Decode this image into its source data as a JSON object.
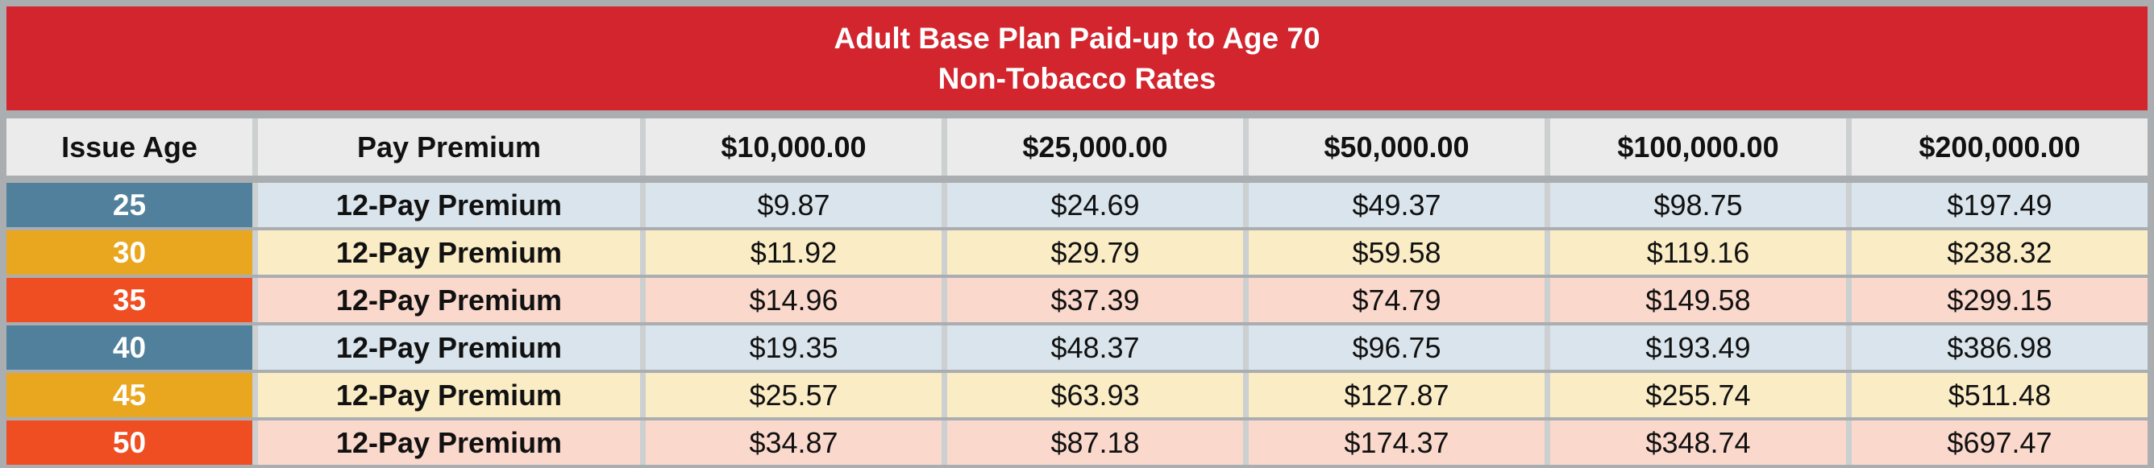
{
  "title": {
    "line1": "Adult Base Plan Paid-up to Age 70",
    "line2": "Non-Tobacco Rates"
  },
  "table": {
    "columns": [
      "Issue Age",
      "Pay Premium",
      "$10,000.00",
      "$25,000.00",
      "$50,000.00",
      "$100,000.00",
      "$200,000.00"
    ],
    "rows": [
      {
        "age": "25",
        "premium_type": "12-Pay Premium",
        "values": [
          "$9.87",
          "$24.69",
          "$49.37",
          "$98.75",
          "$197.49"
        ],
        "age_color": "#50809c",
        "row_color": "#d9e4ec"
      },
      {
        "age": "30",
        "premium_type": "12-Pay Premium",
        "values": [
          "$11.92",
          "$29.79",
          "$59.58",
          "$119.16",
          "$238.32"
        ],
        "age_color": "#e9a61f",
        "row_color": "#faecc5"
      },
      {
        "age": "35",
        "premium_type": "12-Pay Premium",
        "values": [
          "$14.96",
          "$37.39",
          "$74.79",
          "$149.58",
          "$299.15"
        ],
        "age_color": "#ef4e23",
        "row_color": "#fad8cc"
      },
      {
        "age": "40",
        "premium_type": "12-Pay Premium",
        "values": [
          "$19.35",
          "$48.37",
          "$96.75",
          "$193.49",
          "$386.98"
        ],
        "age_color": "#50809c",
        "row_color": "#d9e4ec"
      },
      {
        "age": "45",
        "premium_type": "12-Pay Premium",
        "values": [
          "$25.57",
          "$63.93",
          "$127.87",
          "$255.74",
          "$511.48"
        ],
        "age_color": "#e9a61f",
        "row_color": "#faecc5"
      },
      {
        "age": "50",
        "premium_type": "12-Pay Premium",
        "values": [
          "$34.87",
          "$87.18",
          "$174.37",
          "$348.74",
          "$697.47"
        ],
        "age_color": "#ef4e23",
        "row_color": "#fad8cc"
      }
    ]
  },
  "colors": {
    "title_band": "#d2252e",
    "title_text": "#ffffff",
    "header_cell": "#ebebeb",
    "grid_gray": "#abaeb0",
    "column_gap_gray": "#ccd0d1",
    "age_blue": "#50809c",
    "age_amber": "#e9a61f",
    "age_orange": "#ef4e23",
    "row_blue": "#d9e4ec",
    "row_yellow": "#faecc5",
    "row_pink": "#fad8cc"
  },
  "chart_data": {
    "type": "table",
    "title": "Adult Base Plan Paid-up to Age 70 — Non-Tobacco Rates",
    "columns": [
      "Issue Age",
      "Pay Premium",
      "$10,000.00",
      "$25,000.00",
      "$50,000.00",
      "$100,000.00",
      "$200,000.00"
    ],
    "rows": [
      [
        "25",
        "12-Pay Premium",
        "$9.87",
        "$24.69",
        "$49.37",
        "$98.75",
        "$197.49"
      ],
      [
        "30",
        "12-Pay Premium",
        "$11.92",
        "$29.79",
        "$59.58",
        "$119.16",
        "$238.32"
      ],
      [
        "35",
        "12-Pay Premium",
        "$14.96",
        "$37.39",
        "$74.79",
        "$149.58",
        "$299.15"
      ],
      [
        "40",
        "12-Pay Premium",
        "$19.35",
        "$48.37",
        "$96.75",
        "$193.49",
        "$386.98"
      ],
      [
        "45",
        "12-Pay Premium",
        "$25.57",
        "$63.93",
        "$127.87",
        "$255.74",
        "$511.48"
      ],
      [
        "50",
        "12-Pay Premium",
        "$34.87",
        "$87.18",
        "$174.37",
        "$348.74",
        "$697.47"
      ]
    ]
  }
}
